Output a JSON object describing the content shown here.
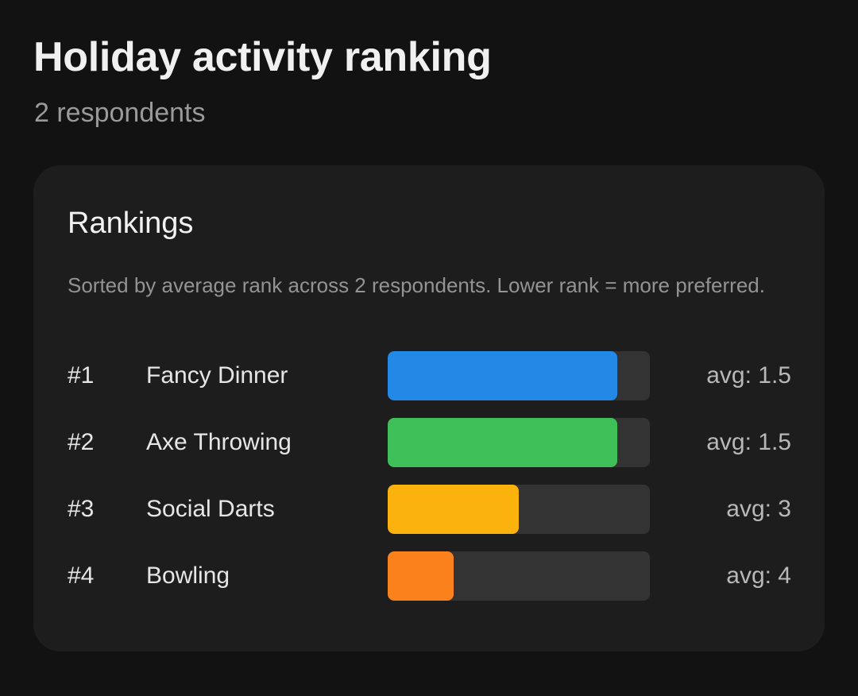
{
  "header": {
    "title": "Holiday activity ranking",
    "respondents": "2 respondents"
  },
  "card": {
    "title": "Rankings",
    "note": "Sorted by average rank across 2 respondents. Lower rank = more preferred."
  },
  "rankings": [
    {
      "rank": "#1",
      "name": "Fancy Dinner",
      "avg_label": "avg: 1.5",
      "bar_fraction": 0.875,
      "color": "#2289e6"
    },
    {
      "rank": "#2",
      "name": "Axe Throwing",
      "avg_label": "avg: 1.5",
      "bar_fraction": 0.875,
      "color": "#3fbf58"
    },
    {
      "rank": "#3",
      "name": "Social Darts",
      "avg_label": "avg: 3",
      "bar_fraction": 0.5,
      "color": "#fbb20c"
    },
    {
      "rank": "#4",
      "name": "Bowling",
      "avg_label": "avg: 4",
      "bar_fraction": 0.25,
      "color": "#fb811d"
    }
  ]
}
